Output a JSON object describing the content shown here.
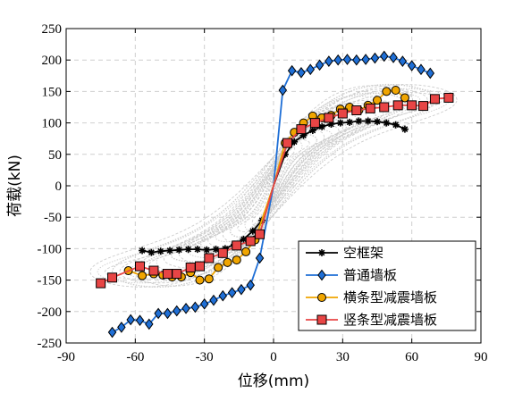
{
  "chart_data": {
    "type": "line",
    "xlabel": "位移(mm)",
    "ylabel": "荷载(kN)",
    "xlim": [
      -90,
      90
    ],
    "ylim": [
      -250,
      250
    ],
    "xticks": [
      "-90",
      "-60",
      "-30",
      "0",
      "30",
      "60",
      "90"
    ],
    "yticks": [
      "250",
      "200",
      "150",
      "100",
      "50",
      "0",
      "-50",
      "-100",
      "-150",
      "-200",
      "-250"
    ],
    "grid": true,
    "legend_position": "bottom-right",
    "background_hysteresis_color": "#c8c8c8",
    "series": [
      {
        "name": "空框架",
        "color": "#000000",
        "marker": "asterisk",
        "x": [
          -57,
          -53,
          -49,
          -45,
          -41,
          -37,
          -33,
          -29,
          -25,
          -21,
          -17,
          -13,
          -9,
          -5,
          0,
          5,
          9,
          13,
          17,
          21,
          25,
          29,
          33,
          37,
          41,
          45,
          49,
          53,
          57
        ],
        "y": [
          -103,
          -106,
          -104,
          -103,
          -102,
          -101,
          -101,
          -102,
          -101,
          -100,
          -93,
          -85,
          -72,
          -55,
          0,
          50,
          70,
          80,
          88,
          94,
          98,
          100,
          101,
          103,
          103,
          102,
          100,
          97,
          90
        ]
      },
      {
        "name": "普通墙板",
        "color": "#1f6fd6",
        "marker": "diamond",
        "x": [
          -70,
          -66,
          -62,
          -58,
          -54,
          -50,
          -46,
          -42,
          -38,
          -34,
          -30,
          -26,
          -22,
          -18,
          -14,
          -10,
          -6,
          0,
          4,
          8,
          12,
          16,
          20,
          24,
          28,
          32,
          36,
          40,
          44,
          48,
          52,
          56,
          60,
          64,
          68
        ],
        "y": [
          -233,
          -225,
          -213,
          -214,
          -220,
          -203,
          -203,
          -199,
          -195,
          -193,
          -188,
          -182,
          -175,
          -170,
          -165,
          -158,
          -115,
          0,
          152,
          183,
          180,
          185,
          192,
          198,
          200,
          201,
          200,
          201,
          203,
          206,
          204,
          198,
          191,
          185,
          179
        ]
      },
      {
        "name": "横条型减震墙板",
        "color": "#f0a500",
        "marker": "circle",
        "x": [
          -63,
          -57,
          -52,
          -48,
          -44,
          -40,
          -36,
          -32,
          -28,
          -24,
          -20,
          -16,
          -12,
          -8,
          0,
          5,
          9,
          13,
          17,
          21,
          25,
          29,
          33,
          37,
          41,
          45,
          49,
          53,
          57
        ],
        "y": [
          -135,
          -143,
          -140,
          -142,
          -145,
          -145,
          -138,
          -150,
          -148,
          -130,
          -122,
          -118,
          -105,
          -86,
          0,
          68,
          85,
          100,
          111,
          108,
          112,
          122,
          125,
          120,
          128,
          136,
          150,
          152,
          140
        ]
      },
      {
        "name": "竖条型减震墙板",
        "color": "#e84545",
        "marker": "square",
        "x": [
          -75,
          -70,
          -58,
          -52,
          -46,
          -42,
          -36,
          -32,
          -28,
          -22,
          -16,
          -10,
          -6,
          0,
          6,
          12,
          18,
          24,
          30,
          36,
          42,
          48,
          54,
          60,
          65,
          70,
          76
        ],
        "y": [
          -155,
          -146,
          -128,
          -135,
          -140,
          -140,
          -130,
          -128,
          -115,
          -107,
          -95,
          -88,
          -77,
          0,
          68,
          90,
          100,
          108,
          115,
          120,
          123,
          125,
          128,
          128,
          127,
          138,
          140
        ]
      }
    ]
  }
}
